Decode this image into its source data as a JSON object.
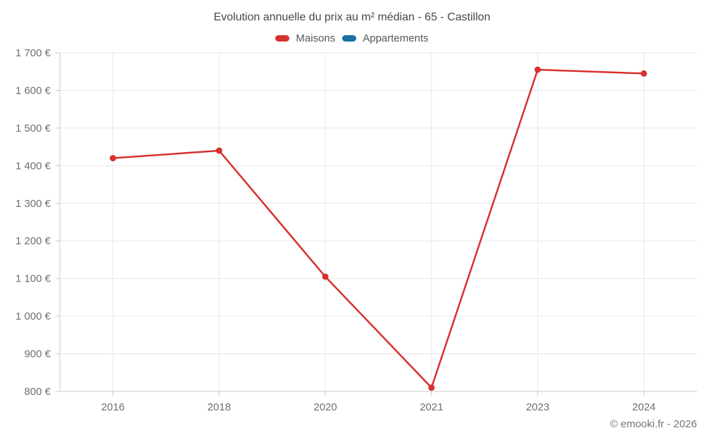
{
  "page": {
    "title": "Evolution annuelle du prix au m² médian - 65 - Castillon",
    "footer": "© emooki.fr - 2026"
  },
  "colors": {
    "maisons": "#d7302f",
    "appartements": "#1b6ea5",
    "title_text": "#474747",
    "legend_text": "#565656",
    "axis_text": "#6f6f6f",
    "gridline": "#e7e7e7",
    "axis_line": "#c9c9c9"
  },
  "chart_data": {
    "type": "line",
    "title": "Evolution annuelle du prix au m² médian - 65 - Castillon",
    "categories": [
      "2016",
      "2018",
      "2020",
      "2021",
      "2023",
      "2024"
    ],
    "series": [
      {
        "name": "Maisons",
        "color": "#d7302f",
        "values": [
          1420,
          1440,
          1105,
          810,
          1655,
          1645
        ]
      },
      {
        "name": "Appartements",
        "color": "#1b6ea5",
        "values": []
      }
    ],
    "xlabel": "",
    "ylabel": "",
    "unit": "€",
    "ylim": [
      800,
      1700
    ],
    "y_tick_step": 100,
    "y_tick_labels": [
      "800 €",
      "900 €",
      "1 000 €",
      "1 100 €",
      "1 200 €",
      "1 300 €",
      "1 400 €",
      "1 500 €",
      "1 600 €",
      "1 700 €"
    ],
    "grid": true,
    "legend_position": "top",
    "marker": "circle"
  }
}
